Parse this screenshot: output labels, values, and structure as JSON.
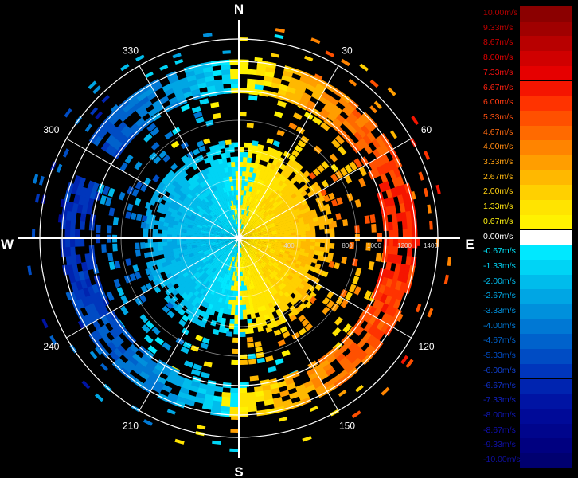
{
  "cardinals": {
    "north": "N",
    "east": "E",
    "south": "S",
    "west": "W"
  },
  "azimuth_labels": [
    {
      "angle": 30,
      "text": "30"
    },
    {
      "angle": 60,
      "text": "60"
    },
    {
      "angle": 120,
      "text": "120"
    },
    {
      "angle": 150,
      "text": "150"
    },
    {
      "angle": 210,
      "text": "210"
    },
    {
      "angle": 240,
      "text": "240"
    },
    {
      "angle": 300,
      "text": "300"
    },
    {
      "angle": 330,
      "text": "330"
    }
  ],
  "range_labels": [
    "400",
    "800",
    "1000",
    "1200",
    "1400"
  ],
  "legend": [
    {
      "label": "10.00m/s",
      "color": "#8b0000",
      "text_color": "#b00000"
    },
    {
      "label": "9.33m/s",
      "color": "#a00000",
      "text_color": "#c00000"
    },
    {
      "label": "8.67m/s",
      "color": "#b80000",
      "text_color": "#d00000"
    },
    {
      "label": "8.00m/s",
      "color": "#d00000",
      "text_color": "#e00000"
    },
    {
      "label": "7.33m/s",
      "color": "#e60000",
      "text_color": "#f01010"
    },
    {
      "label": "6.67m/s",
      "color": "#f51500",
      "text_color": "#ff2010"
    },
    {
      "label": "6.00m/s",
      "color": "#ff3300",
      "text_color": "#ff3a10"
    },
    {
      "label": "5.33m/s",
      "color": "#ff5000",
      "text_color": "#ff5010"
    },
    {
      "label": "4.67m/s",
      "color": "#ff6a00",
      "text_color": "#ff6a10"
    },
    {
      "label": "4.00m/s",
      "color": "#ff8400",
      "text_color": "#ff8810"
    },
    {
      "label": "3.33m/s",
      "color": "#ff9e00",
      "text_color": "#ffa010"
    },
    {
      "label": "2.67m/s",
      "color": "#ffb800",
      "text_color": "#ffb810"
    },
    {
      "label": "2.00m/s",
      "color": "#ffd000",
      "text_color": "#ffd010"
    },
    {
      "label": "1.33m/s",
      "color": "#ffe400",
      "text_color": "#ffe410"
    },
    {
      "label": "0.67m/s",
      "color": "#fff200",
      "text_color": "#fff210"
    },
    {
      "label": "0.00m/s",
      "color": "#ffffff",
      "text_color": "#ffffff"
    },
    {
      "label": "-0.67m/s",
      "color": "#00e8ff",
      "text_color": "#00e8ff"
    },
    {
      "label": "-1.33m/s",
      "color": "#00d4f5",
      "text_color": "#00d4f5"
    },
    {
      "label": "-2.00m/s",
      "color": "#00bcec",
      "text_color": "#00bcec"
    },
    {
      "label": "-2.67m/s",
      "color": "#00a6e4",
      "text_color": "#00a6e4"
    },
    {
      "label": "-3.33m/s",
      "color": "#0090dc",
      "text_color": "#0090dc"
    },
    {
      "label": "-4.00m/s",
      "color": "#0078d4",
      "text_color": "#0078d4"
    },
    {
      "label": "-4.67m/s",
      "color": "#0062cc",
      "text_color": "#0062cc"
    },
    {
      "label": "-5.33m/s",
      "color": "#004cc4",
      "text_color": "#004cc4"
    },
    {
      "label": "-6.00m/s",
      "color": "#0036bc",
      "text_color": "#1040d0"
    },
    {
      "label": "-6.67m/s",
      "color": "#0024b0",
      "text_color": "#1030c8"
    },
    {
      "label": "-7.33m/s",
      "color": "#0014a4",
      "text_color": "#1020c0"
    },
    {
      "label": "-8.00m/s",
      "color": "#000a98",
      "text_color": "#1018b8"
    },
    {
      "label": "-8.67m/s",
      "color": "#00058c",
      "text_color": "#1010b0"
    },
    {
      "label": "-9.33m/s",
      "color": "#000080",
      "text_color": "#1010a8"
    },
    {
      "label": "-10.00m/s",
      "color": "#000070",
      "text_color": "#1010a0"
    }
  ]
}
